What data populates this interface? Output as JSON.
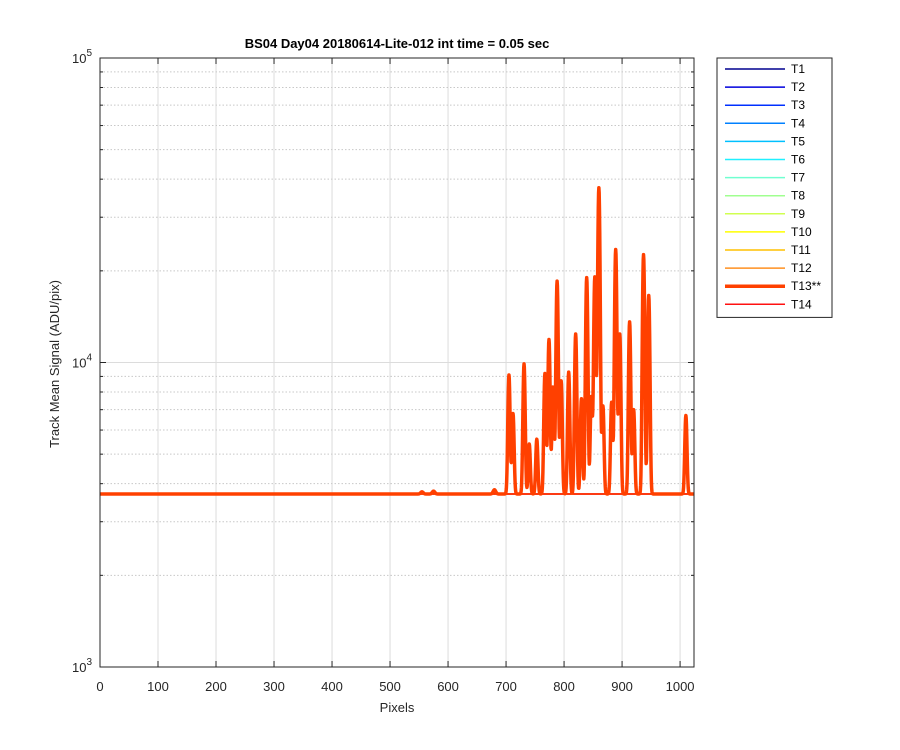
{
  "chart_data": {
    "type": "line",
    "title": "BS04 Day04 20180614-Lite-012 int time = 0.05 sec",
    "xlabel": "Pixels",
    "ylabel": "Track Mean Signal (ADU/pix)",
    "xlim": [
      0,
      1024
    ],
    "ylim": [
      1000,
      100000
    ],
    "yscale": "log",
    "grid": true,
    "minor_grid": true,
    "legend_position": "outside-right",
    "x_ticks": [
      "0",
      "100",
      "200",
      "300",
      "400",
      "500",
      "600",
      "700",
      "800",
      "900",
      "1000"
    ],
    "y_ticks": [
      {
        "base": "10",
        "exp": "3"
      },
      {
        "base": "10",
        "exp": "4"
      },
      {
        "base": "10",
        "exp": "5"
      }
    ],
    "baseline": 3700,
    "series": [
      {
        "name": "T1",
        "color": "#00008f",
        "linewidth": 1.5
      },
      {
        "name": "T2",
        "color": "#0000dd",
        "linewidth": 1.5
      },
      {
        "name": "T3",
        "color": "#0030ff",
        "linewidth": 1.5
      },
      {
        "name": "T4",
        "color": "#0080ff",
        "linewidth": 1.5
      },
      {
        "name": "T5",
        "color": "#00c0ff",
        "linewidth": 1.5
      },
      {
        "name": "T6",
        "color": "#20f0ff",
        "linewidth": 1.5
      },
      {
        "name": "T7",
        "color": "#70ffd0",
        "linewidth": 1.5
      },
      {
        "name": "T8",
        "color": "#a0ff90",
        "linewidth": 1.5
      },
      {
        "name": "T9",
        "color": "#d0ff50",
        "linewidth": 1.5
      },
      {
        "name": "T10",
        "color": "#ffff00",
        "linewidth": 1.5
      },
      {
        "name": "T11",
        "color": "#ffc000",
        "linewidth": 1.5
      },
      {
        "name": "T12",
        "color": "#ff9020",
        "linewidth": 1.5
      },
      {
        "name": "T13**",
        "color": "#ff4000",
        "linewidth": 3.5,
        "highlighted": true,
        "peaks": [
          {
            "x": 555,
            "y": 3760
          },
          {
            "x": 575,
            "y": 3780
          },
          {
            "x": 680,
            "y": 3820
          },
          {
            "x": 705,
            "y": 9100
          },
          {
            "x": 712,
            "y": 6800
          },
          {
            "x": 731,
            "y": 9900
          },
          {
            "x": 740,
            "y": 5400
          },
          {
            "x": 753,
            "y": 5600
          },
          {
            "x": 767,
            "y": 9200
          },
          {
            "x": 774,
            "y": 11900
          },
          {
            "x": 781,
            "y": 8300
          },
          {
            "x": 788,
            "y": 18500
          },
          {
            "x": 795,
            "y": 8700
          },
          {
            "x": 808,
            "y": 9300
          },
          {
            "x": 820,
            "y": 12400
          },
          {
            "x": 830,
            "y": 7600
          },
          {
            "x": 839,
            "y": 19000
          },
          {
            "x": 847,
            "y": 7700
          },
          {
            "x": 853,
            "y": 19100
          },
          {
            "x": 860,
            "y": 37500
          },
          {
            "x": 867,
            "y": 7200
          },
          {
            "x": 882,
            "y": 7400
          },
          {
            "x": 889,
            "y": 23500
          },
          {
            "x": 896,
            "y": 12400
          },
          {
            "x": 913,
            "y": 13600
          },
          {
            "x": 920,
            "y": 7000
          },
          {
            "x": 937,
            "y": 22600
          },
          {
            "x": 946,
            "y": 16600
          },
          {
            "x": 1010,
            "y": 6700
          }
        ]
      },
      {
        "name": "T14",
        "color": "#ff1010",
        "linewidth": 1.5
      }
    ]
  }
}
